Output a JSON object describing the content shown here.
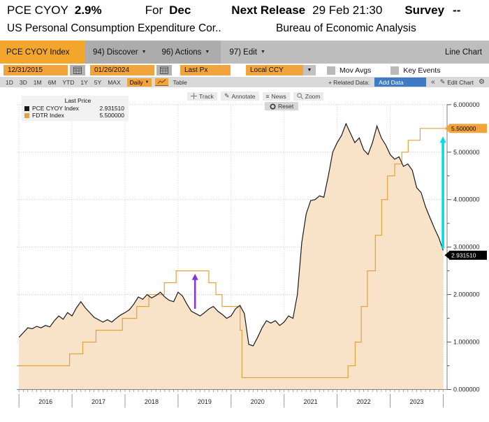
{
  "header": {
    "ticker": "PCE CYOY",
    "value": "2.9%",
    "for_label": "For",
    "for_value": "Dec",
    "next_release_label": "Next Release",
    "next_release_value": "29 Feb 21:30",
    "survey_label": "Survey",
    "survey_value": "--",
    "description": "US Personal Consumption Expenditure Cor..",
    "source": "Bureau of Economic Analysis"
  },
  "menubar": {
    "security_tab": "PCE CYOY Index",
    "items": [
      "94) Discover",
      "96) Actions",
      "97) Edit"
    ],
    "right_label": "Line Chart"
  },
  "controls": {
    "date_from": "12/31/2015",
    "date_to": "01/26/2024",
    "price_field": "Last Px",
    "currency": "Local CCY",
    "mov_avgs_label": "Mov Avgs",
    "key_events_label": "Key Events"
  },
  "rangebar": {
    "ranges": [
      "1D",
      "3D",
      "1M",
      "6M",
      "YTD",
      "1Y",
      "5Y",
      "MAX"
    ],
    "period": "Daily",
    "table_label": "Table",
    "related_data_label": "+ Related Data:",
    "add_data_label": "Add Data",
    "edit_chart_label": "Edit Chart"
  },
  "icons": {
    "caret_down": "▼",
    "pencil": "✎",
    "gear": "⚙",
    "chevrons": "«",
    "track_cross": "+",
    "news_lines": "≡"
  },
  "chart_toolbar": {
    "track": "Track",
    "annotate": "Annotate",
    "news": "News",
    "zoom": "Zoom",
    "reset": "Reset"
  },
  "legend": {
    "title": "Last Price",
    "series": [
      {
        "name": "PCE CYOY Index",
        "value": "2.931510"
      },
      {
        "name": "FDTR Index",
        "value": "5.500000"
      }
    ]
  },
  "chart_data": {
    "type": "line",
    "title": "PCE CYOY Index vs FDTR Index",
    "x_range": [
      2015.9583,
      2024.0732
    ],
    "ylim": [
      0,
      6
    ],
    "y_ticks": [
      0,
      1,
      2,
      3,
      4,
      5,
      6
    ],
    "y_tick_decimals": 6,
    "x_tick_years": [
      "2016",
      "2017",
      "2018",
      "2019",
      "2020",
      "2021",
      "2022",
      "2023"
    ],
    "grid": true,
    "legend_position": "top-left",
    "series": [
      {
        "name": "PCE CYOY Index",
        "type": "area-line",
        "color": "#1a1a1a",
        "fill": "#F8E3C8",
        "x_start": 2016.0,
        "x_step": 0.0833333,
        "values": [
          1.1,
          1.2,
          1.3,
          1.28,
          1.33,
          1.3,
          1.35,
          1.32,
          1.45,
          1.55,
          1.48,
          1.62,
          1.55,
          1.72,
          1.85,
          1.72,
          1.62,
          1.52,
          1.47,
          1.42,
          1.47,
          1.42,
          1.5,
          1.57,
          1.62,
          1.68,
          1.8,
          1.95,
          1.9,
          2.0,
          1.93,
          1.98,
          2.05,
          1.95,
          1.88,
          1.85,
          2.05,
          1.97,
          1.8,
          1.65,
          1.6,
          1.55,
          1.62,
          1.7,
          1.75,
          1.65,
          1.58,
          1.5,
          1.55,
          1.7,
          1.77,
          1.6,
          0.95,
          0.92,
          1.1,
          1.3,
          1.45,
          1.4,
          1.45,
          1.35,
          1.42,
          1.55,
          1.5,
          2.0,
          3.1,
          3.7,
          3.98,
          4.0,
          4.08,
          4.05,
          4.5,
          5.0,
          5.2,
          5.35,
          5.6,
          5.4,
          5.2,
          5.3,
          5.05,
          4.95,
          5.2,
          5.55,
          5.3,
          5.15,
          4.95,
          4.85,
          4.9,
          4.7,
          4.75,
          4.62,
          4.25,
          4.15,
          3.85,
          3.62,
          3.4,
          3.2,
          2.93
        ]
      },
      {
        "name": "FDTR Index",
        "type": "step",
        "color": "#E2A23C",
        "points": [
          [
            2015.9583,
            0.5
          ],
          [
            2016.954,
            0.75
          ],
          [
            2017.203,
            1.0
          ],
          [
            2017.452,
            1.25
          ],
          [
            2017.95,
            1.5
          ],
          [
            2018.22,
            1.75
          ],
          [
            2018.45,
            2.0
          ],
          [
            2018.74,
            2.25
          ],
          [
            2018.965,
            2.5
          ],
          [
            2019.58,
            2.25
          ],
          [
            2019.713,
            2.0
          ],
          [
            2019.83,
            1.75
          ],
          [
            2020.17,
            1.25
          ],
          [
            2020.205,
            0.25
          ],
          [
            2022.205,
            0.5
          ],
          [
            2022.34,
            1.0
          ],
          [
            2022.455,
            1.75
          ],
          [
            2022.57,
            2.5
          ],
          [
            2022.72,
            3.25
          ],
          [
            2022.84,
            4.0
          ],
          [
            2022.95,
            4.5
          ],
          [
            2023.085,
            4.75
          ],
          [
            2023.22,
            5.0
          ],
          [
            2023.34,
            5.25
          ],
          [
            2023.565,
            5.5
          ],
          [
            2024.0732,
            5.5
          ]
        ]
      }
    ],
    "annotations": [
      {
        "name": "purple-up-arrow-annotation",
        "type": "arrow",
        "color": "#8633D9",
        "width": 2.5,
        "x": 2019.32,
        "y_from": 1.7,
        "y_to": 2.44
      },
      {
        "name": "cyan-up-arrow-annotation",
        "type": "arrow",
        "color": "#00D9E8",
        "width": 3.5,
        "x": 2023.995,
        "y_from": 2.97,
        "y_to": 5.33
      }
    ],
    "last_labels": [
      {
        "name": "fdtr-last-value-label",
        "text": "5.500000",
        "value": 5.5,
        "bg": "#F2A43C",
        "fg": "#000000",
        "dy": 0
      },
      {
        "name": "pce-last-value-label",
        "text": "2.931510",
        "value": 2.9315,
        "bg": "#000000",
        "fg": "#ffffff",
        "dy": 7
      }
    ]
  }
}
